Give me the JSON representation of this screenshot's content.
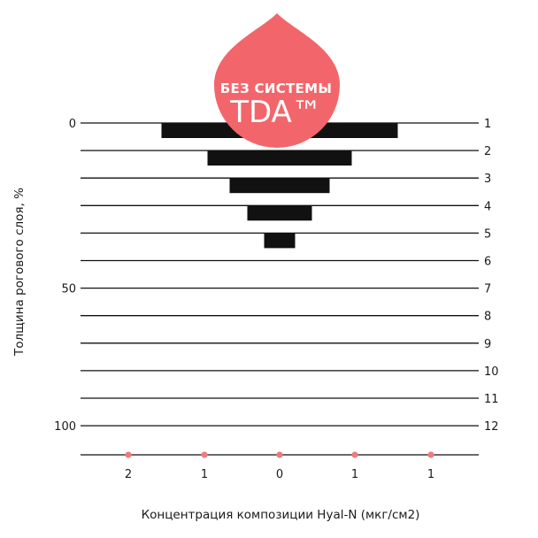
{
  "badge": {
    "line1": "БЕЗ СИСТЕМЫ",
    "line2": "TDA™",
    "color": "#f2666b"
  },
  "chart_data": {
    "type": "bar",
    "orientation": "horizontal-centered",
    "xlabel": "Концентрация композиции Hyal-N (мкг/см2)",
    "ylabel": "Толщина рогового слоя, %",
    "left_ticks": [
      {
        "row": 1,
        "label": "0"
      },
      {
        "row": 7,
        "label": "50"
      },
      {
        "row": 12,
        "label": "100"
      }
    ],
    "right_ticks": [
      "1",
      "2",
      "3",
      "4",
      "5",
      "6",
      "7",
      "8",
      "9",
      "10",
      "11",
      "12"
    ],
    "x_ticks": [
      "2",
      "1",
      "0",
      "1",
      "1"
    ],
    "values": [
      267,
      163,
      113,
      73,
      35
    ],
    "bar_color": "#111111",
    "dot_color": "#f07a7a"
  }
}
